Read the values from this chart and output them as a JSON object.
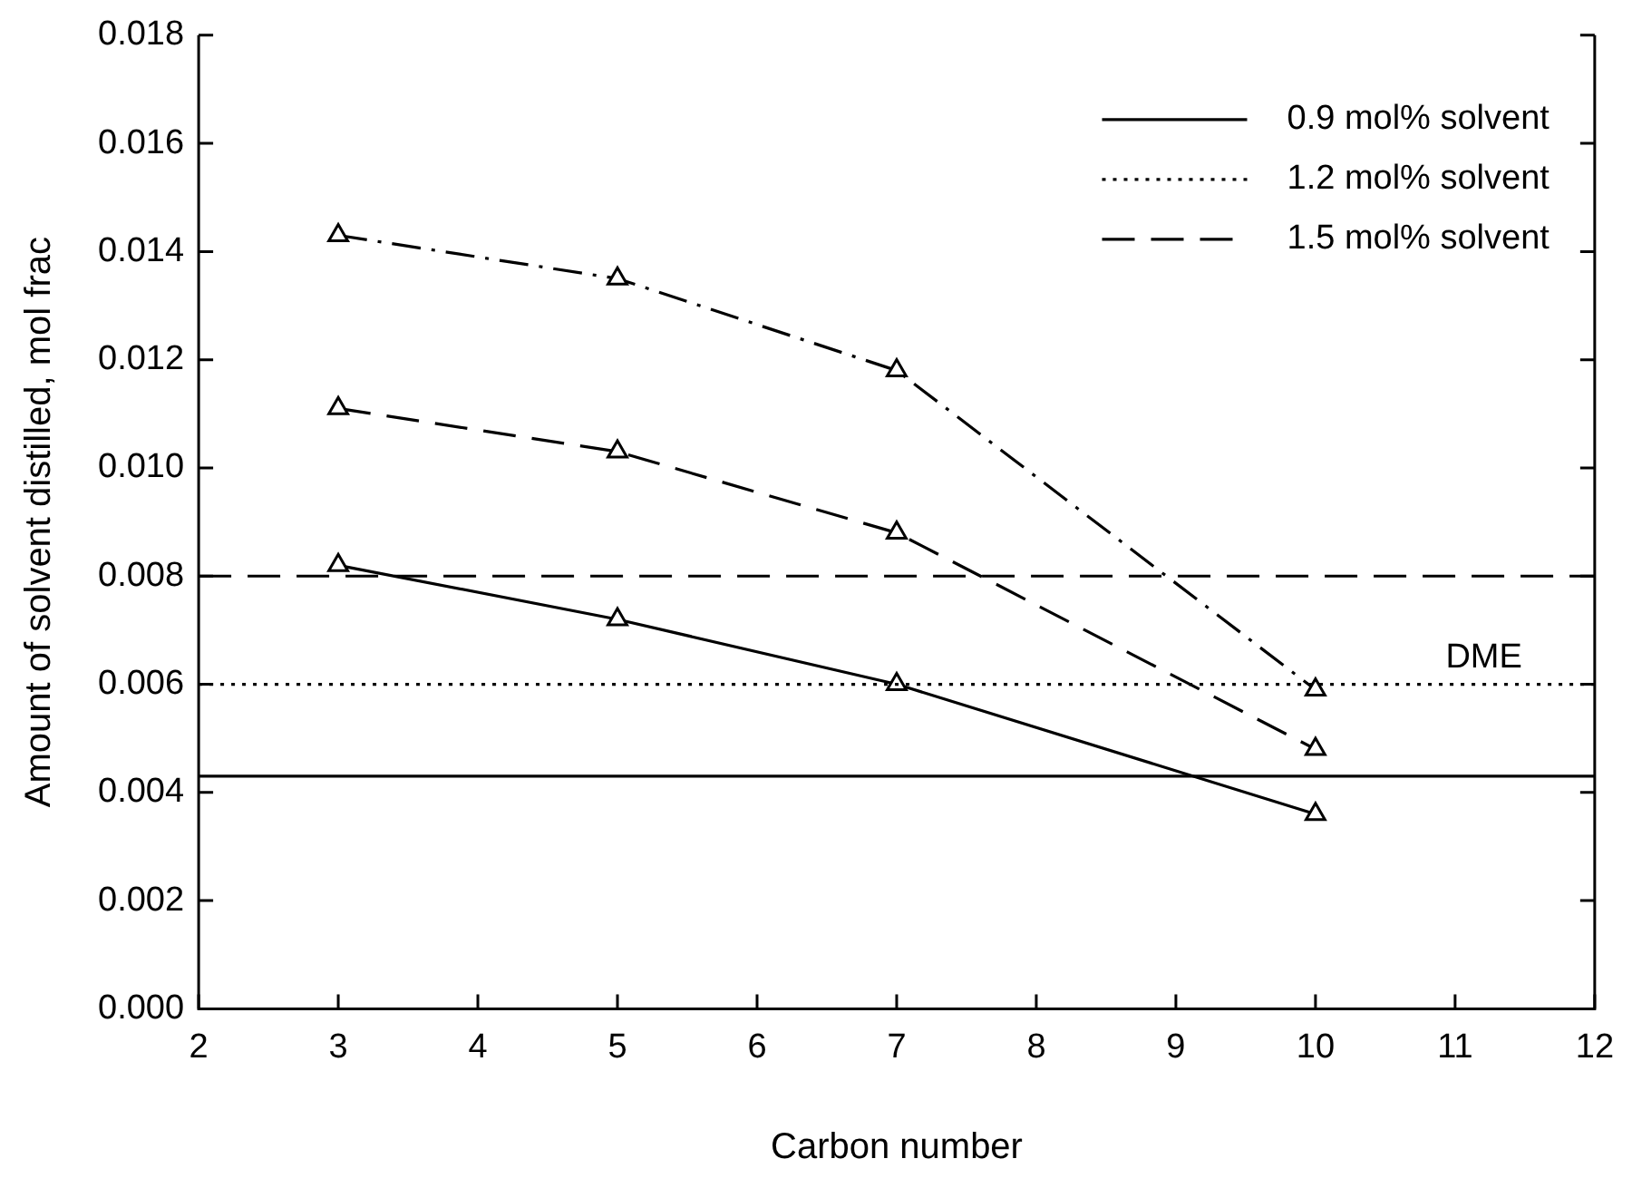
{
  "chart_data": {
    "type": "line",
    "xlabel": "Carbon number",
    "ylabel": "Amount of solvent distilled, mol frac",
    "x": [
      3,
      5,
      7,
      10
    ],
    "series": [
      {
        "color": "#000000",
        "line_style": "solid",
        "marker": "triangle",
        "values": [
          0.0082,
          0.0072,
          0.006,
          0.0036
        ]
      },
      {
        "color": "#000000",
        "line_style": "dashed",
        "marker": "triangle",
        "values": [
          0.0111,
          0.0103,
          0.0088,
          0.0048
        ]
      },
      {
        "color": "#000000",
        "line_style": "dashdot",
        "marker": "triangle",
        "values": [
          0.0143,
          0.0135,
          0.0118,
          0.0059
        ]
      }
    ],
    "ref_lines": [
      {
        "axis": "y",
        "value": 0.0043,
        "label": "0.9 mol% solvent",
        "color": "#000000",
        "line_style": "solid"
      },
      {
        "axis": "y",
        "value": 0.006,
        "label": "1.2 mol% solvent",
        "color": "#000000",
        "line_style": "dotted"
      },
      {
        "axis": "y",
        "value": 0.008,
        "label": "1.5 mol% solvent",
        "color": "#000000",
        "line_style": "dashed"
      }
    ],
    "annotations": [
      "DME"
    ],
    "xlim": [
      2,
      12
    ],
    "xticks": [
      2,
      3,
      4,
      5,
      6,
      7,
      8,
      9,
      10,
      11,
      12
    ],
    "ylim": [
      0,
      0.018
    ],
    "yticks": [
      {
        "value": 0,
        "label": "0.000"
      },
      {
        "value": 0.002,
        "label": "0.002"
      },
      {
        "value": 0.004,
        "label": "0.004"
      },
      {
        "value": 0.006,
        "label": "0.006"
      },
      {
        "value": 0.008,
        "label": "0.008"
      },
      {
        "value": 0.01,
        "label": "0.010"
      },
      {
        "value": 0.012,
        "label": "0.012"
      },
      {
        "value": 0.014,
        "label": "0.014"
      },
      {
        "value": 0.016,
        "label": "0.016"
      },
      {
        "value": 0.018,
        "label": "0.018"
      }
    ],
    "legend": "top right",
    "grid": false
  }
}
